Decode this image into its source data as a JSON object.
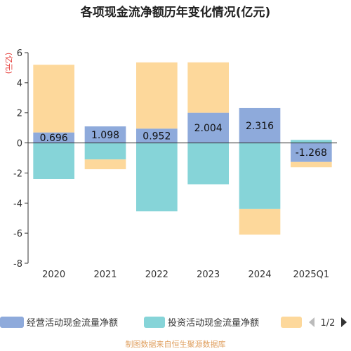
{
  "chart_data": {
    "type": "bar",
    "stacked": true,
    "title": "各项现金流净额历年变化情况(亿元)",
    "ylabel": "(亿元)",
    "categories": [
      "2020",
      "2021",
      "2022",
      "2023",
      "2024",
      "2025Q1"
    ],
    "ylim": [
      -8,
      6
    ],
    "yticks": [
      -8,
      -6,
      -4,
      -2,
      0,
      2,
      4,
      6
    ],
    "grid": false,
    "legend_position": "bottom",
    "series": [
      {
        "name": "经营活动现金流量净额",
        "color": "#8eaadb",
        "values": [
          0.696,
          1.098,
          0.952,
          2.004,
          2.316,
          -1.268
        ]
      },
      {
        "name": "投资活动现金流量净额",
        "color": "#86d4d8",
        "values": [
          -2.4,
          -1.1,
          -4.55,
          -2.75,
          -4.4,
          0.2
        ]
      },
      {
        "name": "",
        "color": "#fdd89b",
        "values": [
          4.5,
          -0.65,
          4.4,
          3.35,
          -1.7,
          -0.35
        ]
      }
    ],
    "data_labels": [
      "0.696",
      "1.098",
      "0.952",
      "2.004",
      "2.316",
      "-1.268"
    ]
  },
  "legend": {
    "page": "1/2",
    "prev_icon": "triangle-left-icon",
    "next_icon": "triangle-right-icon"
  },
  "source": "制图数据来自恒生聚源数据库"
}
